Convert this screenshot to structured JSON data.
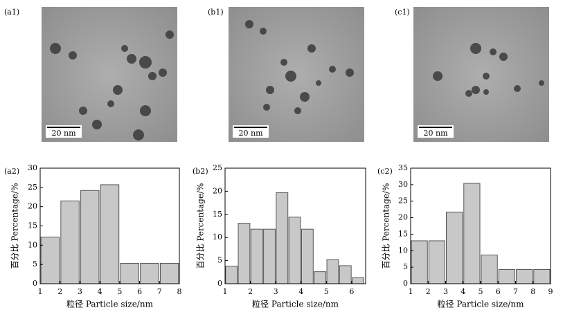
{
  "images": [
    {
      "label": "(a1)",
      "scale_bar": "20 nm"
    },
    {
      "label": "(b1)",
      "scale_bar": "20 nm"
    },
    {
      "label": "(c1)",
      "scale_bar": "20 nm"
    }
  ],
  "chart_data": [
    {
      "type": "histogram",
      "label": "(a2)",
      "x_label": "粒径 Particle size/nm",
      "y_label": "百分比 Percentage/%",
      "bins": [
        1,
        2,
        3,
        4,
        5,
        6,
        7,
        8
      ],
      "values": [
        12.1,
        21.5,
        24.2,
        25.7,
        5.3,
        5.3,
        5.3
      ],
      "color": "#c8c8c8",
      "xlim": [
        1,
        8
      ],
      "xticks": [
        1,
        2,
        3,
        4,
        5,
        6,
        7,
        8
      ],
      "ylim": [
        0,
        30
      ],
      "yticks": [
        0,
        5,
        10,
        15,
        20,
        25,
        30
      ]
    },
    {
      "type": "histogram",
      "label": "(b2)",
      "x_label": "粒径 Particle size/nm",
      "y_label": "百分比 Percentage/%",
      "bins": [
        1,
        1.5,
        2,
        2.5,
        3,
        3.5,
        4,
        4.5,
        5,
        5.5,
        6,
        6.5
      ],
      "values": [
        3.8,
        13.1,
        11.8,
        11.8,
        19.7,
        14.4,
        11.8,
        2.6,
        5.2,
        3.9,
        1.3
      ],
      "color": "#c8c8c8",
      "xlim": [
        1,
        6.55
      ],
      "xticks": [
        1,
        2,
        3,
        4,
        5,
        6
      ],
      "ylim": [
        0,
        25
      ],
      "yticks": [
        0,
        5,
        10,
        15,
        20,
        25
      ]
    },
    {
      "type": "histogram",
      "label": "(c2)",
      "x_label": "粒径 Particle size/nm",
      "y_label": "百分比 Percentage/%",
      "bins": [
        1,
        2,
        3,
        4,
        5,
        6,
        7,
        8,
        9
      ],
      "values": [
        13.0,
        13.0,
        21.7,
        30.4,
        8.7,
        4.3,
        4.3,
        4.3
      ],
      "color": "#c8c8c8",
      "xlim": [
        1,
        9
      ],
      "xticks": [
        1,
        2,
        3,
        4,
        5,
        6,
        7,
        8,
        9
      ],
      "ylim": [
        0,
        35
      ],
      "yticks": [
        0,
        5,
        10,
        15,
        20,
        25,
        30,
        35
      ]
    }
  ]
}
